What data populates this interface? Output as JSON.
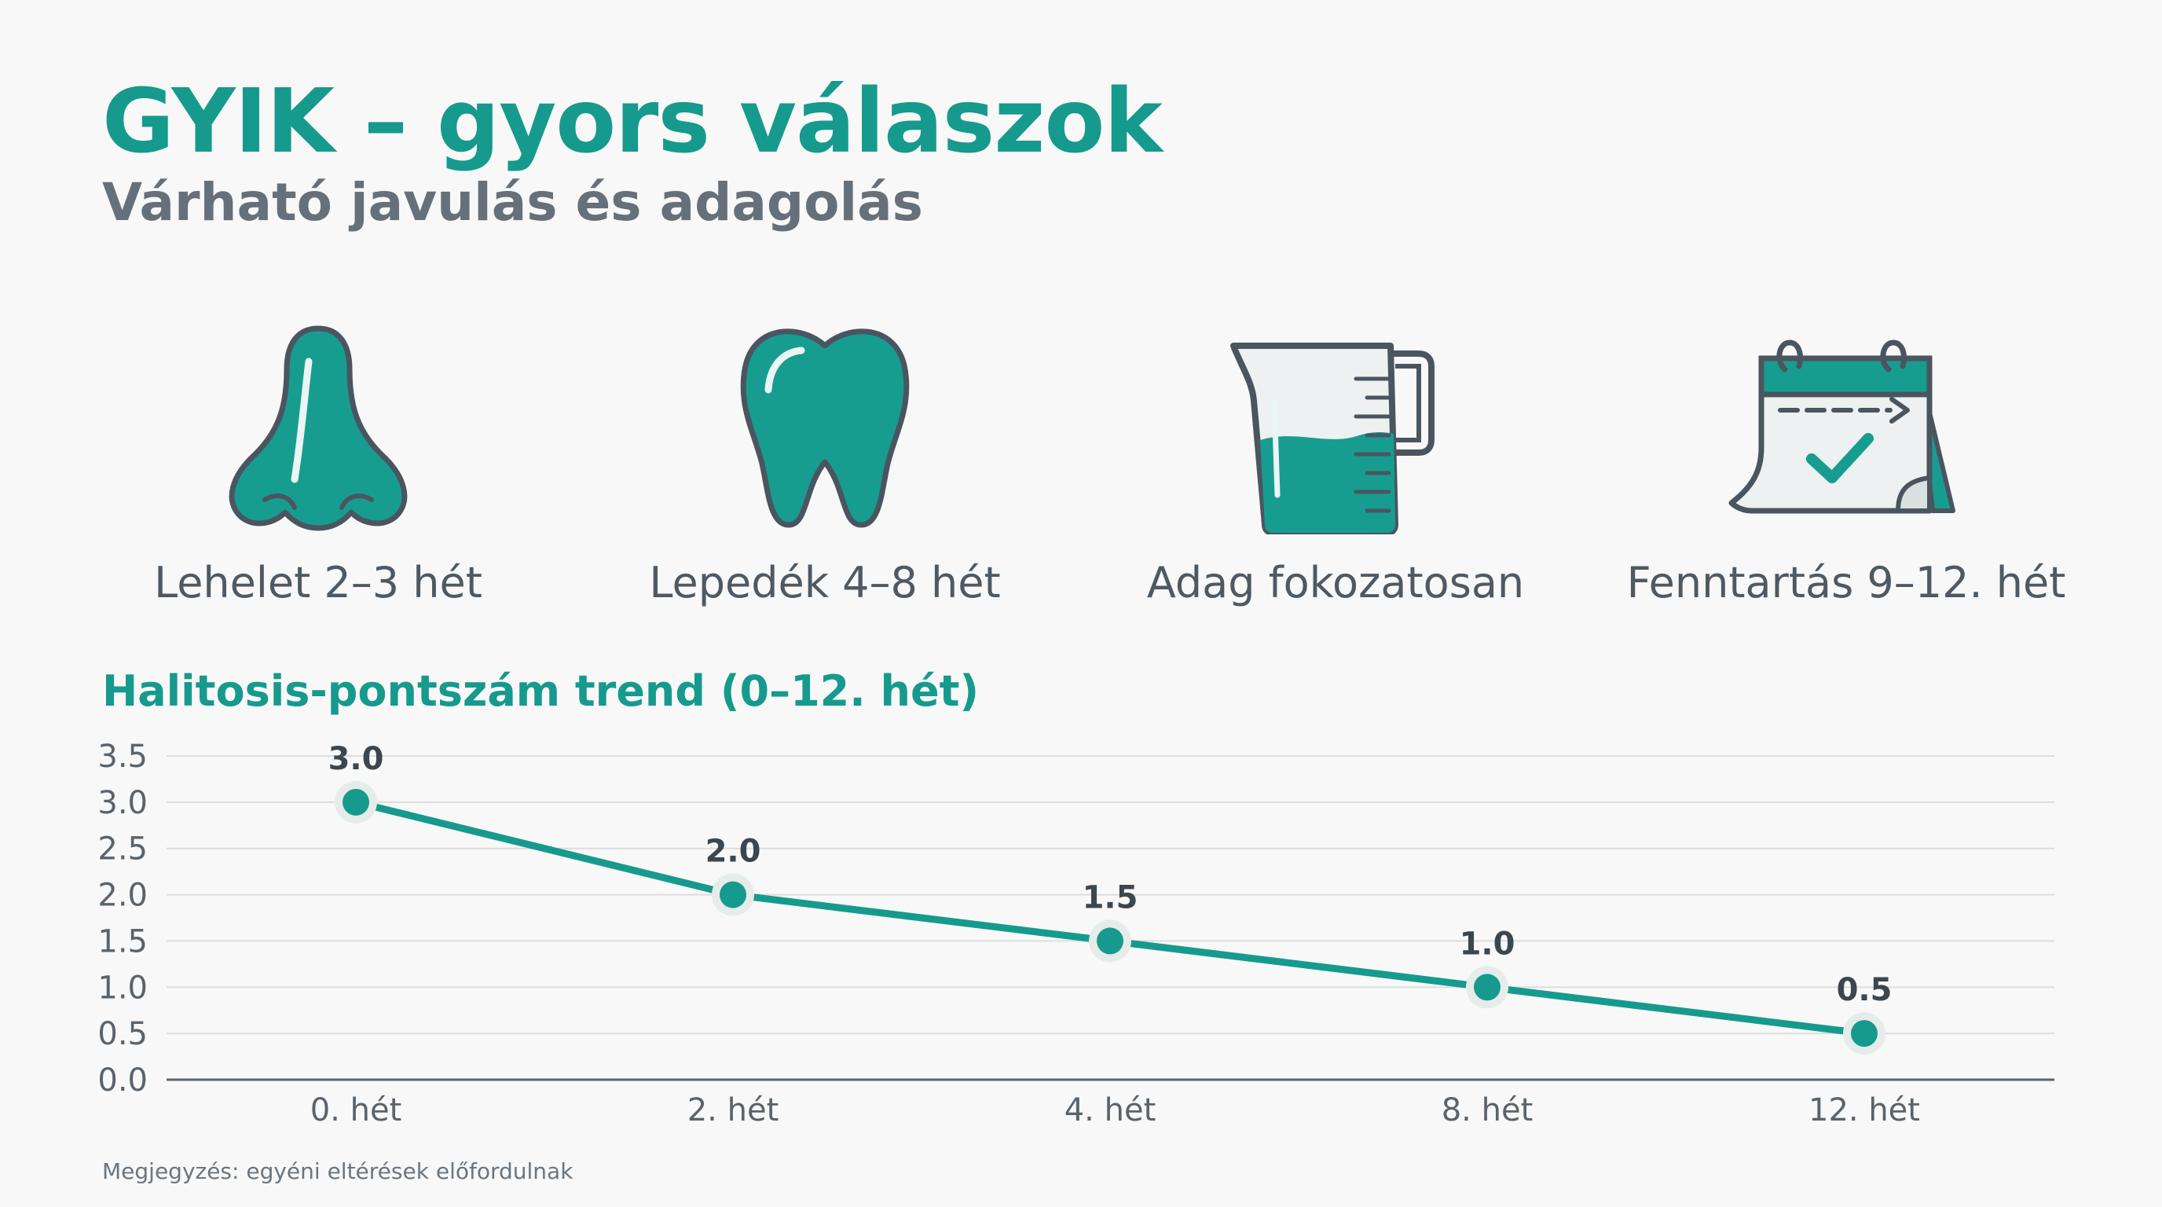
{
  "header": {
    "title": "GYIK – gyors válaszok",
    "subtitle": "Várható javulás és adagolás"
  },
  "features": [
    {
      "icon": "nose-icon",
      "label": "Lehelet 2–3 hét"
    },
    {
      "icon": "tooth-icon",
      "label": "Lepedék 4–8 hét"
    },
    {
      "icon": "measuring-cup-icon",
      "label": "Adag fokozatosan"
    },
    {
      "icon": "calendar-check-icon",
      "label": "Fenntartás 9–12. hét"
    }
  ],
  "colors": {
    "accent": "#169a8d",
    "text": "#4f5963",
    "grid": "#dddddd"
  },
  "chart_data": {
    "type": "line",
    "title": "Halitosis-pontszám trend (0–12. hét)",
    "categories": [
      "0. hét",
      "2. hét",
      "4. hét",
      "8. hét",
      "12. hét"
    ],
    "series": [
      {
        "values": [
          3.0,
          2.0,
          1.5,
          1.0,
          0.5
        ]
      }
    ],
    "data_labels": [
      "3.0",
      "2.0",
      "1.5",
      "1.0",
      "0.5"
    ],
    "yticks": [
      "0.0",
      "0.5",
      "1.0",
      "1.5",
      "2.0",
      "2.5",
      "3.0",
      "3.5"
    ],
    "ylim": [
      0,
      3.5
    ],
    "grid": true,
    "legend": "none"
  },
  "footer": {
    "note": "Megjegyzés: egyéni eltérések előfordulnak"
  }
}
